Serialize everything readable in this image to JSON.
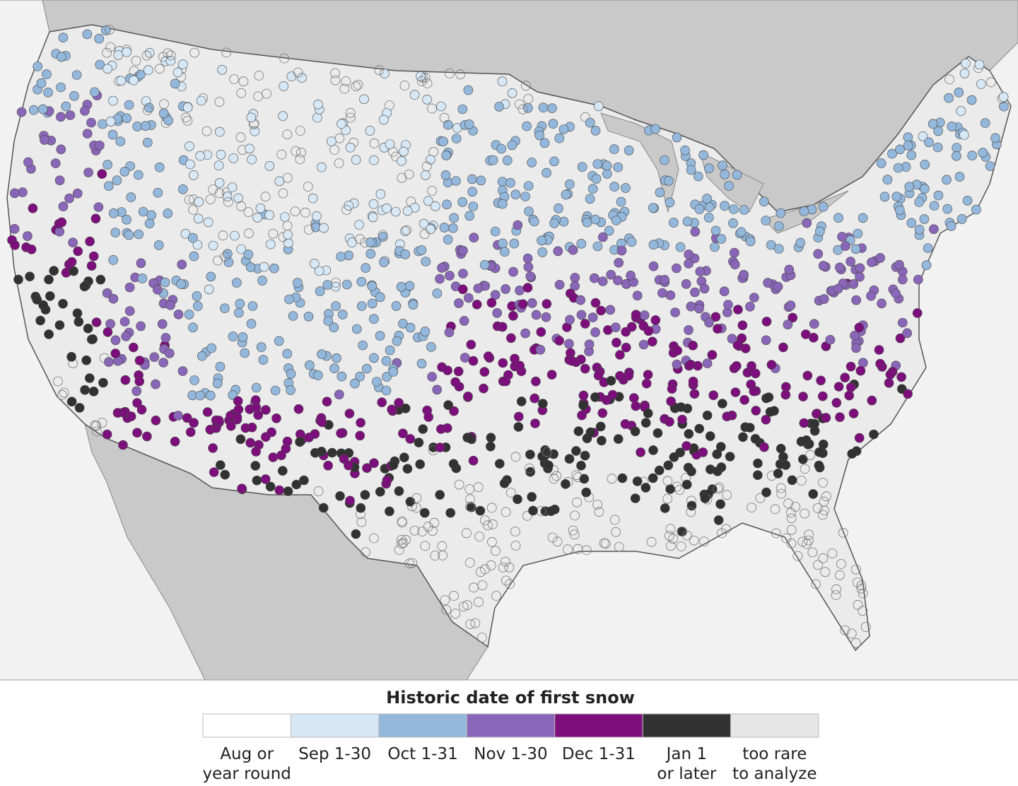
{
  "legend": {
    "title": "Historic date of first snow",
    "items": [
      {
        "lines": [
          "Aug or",
          "year round"
        ],
        "color": "#ffffff"
      },
      {
        "lines": [
          "Sep 1-30"
        ],
        "color": "#d6e7f5"
      },
      {
        "lines": [
          "Oct 1-31"
        ],
        "color": "#94b8dc"
      },
      {
        "lines": [
          "Nov 1-30"
        ],
        "color": "#8a66b8"
      },
      {
        "lines": [
          "Dec 1-31"
        ],
        "color": "#7d0f7d"
      },
      {
        "lines": [
          "Jan 1",
          "or later"
        ],
        "color": "#323232"
      },
      {
        "lines": [
          "too rare",
          "to analyze"
        ],
        "color": "#e6e6e6"
      }
    ]
  }
}
